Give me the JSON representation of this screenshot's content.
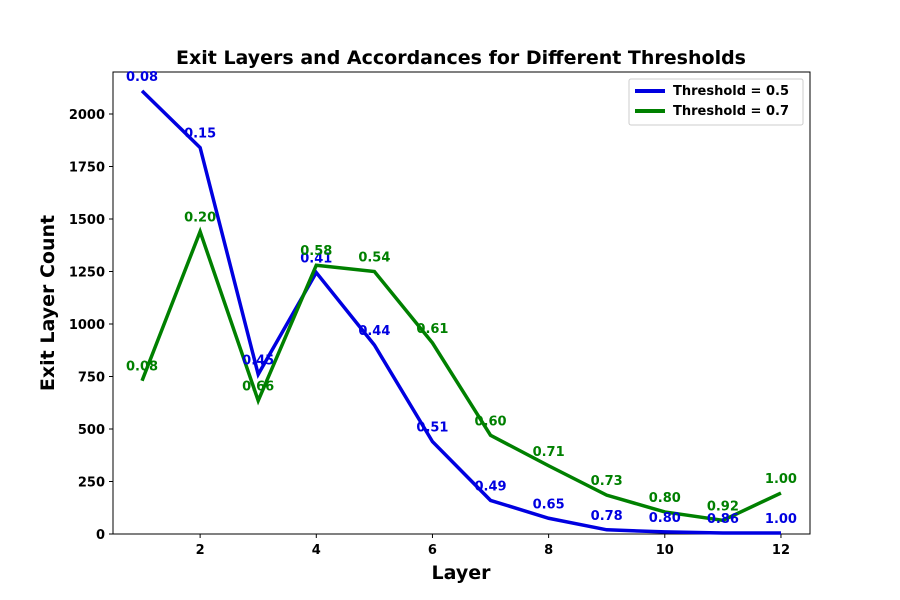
{
  "chart_data": {
    "type": "line",
    "title": "Exit Layers and Accordances for Different Thresholds",
    "xlabel": "Layer",
    "ylabel": "Exit Layer Count",
    "xlim": [
      0.5,
      12.5
    ],
    "ylim": [
      0,
      2200
    ],
    "xticks": [
      2,
      4,
      6,
      8,
      10,
      12
    ],
    "yticks": [
      0,
      250,
      500,
      750,
      1000,
      1250,
      1500,
      1750,
      2000
    ],
    "grid": false,
    "legend_position": "top-right",
    "x": [
      1,
      2,
      3,
      4,
      5,
      6,
      7,
      8,
      9,
      10,
      11,
      12
    ],
    "series": [
      {
        "name": "Threshold = 0.5",
        "color": "#0000e0",
        "values": [
          2110,
          1840,
          760,
          1245,
          900,
          440,
          160,
          75,
          20,
          10,
          5,
          5
        ],
        "labels": [
          "0.08",
          "0.15",
          "0.45",
          "0.41",
          "0.44",
          "0.51",
          "0.49",
          "0.65",
          "0.78",
          "0.80",
          "0.86",
          "1.00"
        ]
      },
      {
        "name": "Threshold = 0.7",
        "color": "#008000",
        "values": [
          730,
          1440,
          635,
          1280,
          1250,
          910,
          470,
          325,
          185,
          105,
          65,
          195
        ],
        "labels": [
          "0.08",
          "0.20",
          "0.66",
          "0.58",
          "0.54",
          "0.61",
          "0.60",
          "0.71",
          "0.73",
          "0.80",
          "0.92",
          "1.00"
        ]
      }
    ]
  }
}
